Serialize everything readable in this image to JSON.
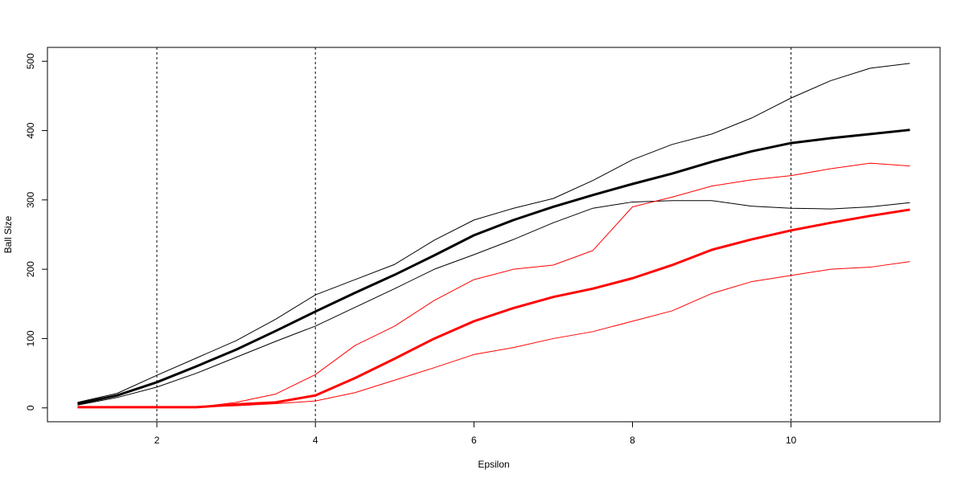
{
  "chart_data": {
    "type": "line",
    "title": "",
    "xlabel": "Epsilon",
    "ylabel": "Ball Size",
    "xlim": [
      0.62,
      11.88
    ],
    "ylim": [
      -20,
      520
    ],
    "x_ticks": [
      2,
      4,
      6,
      8,
      10
    ],
    "y_ticks": [
      0,
      100,
      200,
      300,
      400,
      500
    ],
    "vlines": [
      2,
      4,
      10
    ],
    "grid": false,
    "legend": "none",
    "x": [
      1,
      1.5,
      2,
      2.5,
      3,
      3.5,
      4,
      4.5,
      5,
      5.5,
      6,
      6.5,
      7,
      7.5,
      8,
      8.5,
      9,
      9.5,
      10,
      10.5,
      11,
      11.5
    ],
    "series": [
      {
        "color": "#000000",
        "width": 3,
        "values": [
          6,
          18,
          37,
          60,
          84,
          111,
          139,
          166,
          192,
          220,
          249,
          271,
          290,
          307,
          323,
          338,
          355,
          370,
          382,
          389,
          395,
          401
        ]
      },
      {
        "color": "#000000",
        "width": 1,
        "values": [
          8,
          21,
          47,
          72,
          97,
          128,
          163,
          185,
          207,
          242,
          271,
          288,
          302,
          328,
          358,
          380,
          395,
          418,
          447,
          472,
          490,
          497
        ]
      },
      {
        "color": "#000000",
        "width": 1,
        "values": [
          4,
          15,
          30,
          50,
          73,
          96,
          118,
          145,
          172,
          200,
          221,
          243,
          267,
          288,
          297,
          299,
          299,
          291,
          288,
          287,
          290,
          296
        ]
      },
      {
        "color": "#ff0000",
        "width": 3,
        "values": [
          1,
          1,
          1,
          1,
          5,
          8,
          18,
          43,
          71,
          100,
          125,
          144,
          160,
          172,
          187,
          206,
          228,
          243,
          256,
          267,
          277,
          286
        ]
      },
      {
        "color": "#ff0000",
        "width": 1,
        "values": [
          1,
          1,
          1,
          1,
          8,
          20,
          48,
          90,
          118,
          155,
          185,
          200,
          206,
          227,
          290,
          304,
          320,
          329,
          335,
          345,
          353,
          349
        ]
      },
      {
        "color": "#ff0000",
        "width": 1,
        "values": [
          1,
          1,
          1,
          1,
          3,
          6,
          10,
          22,
          40,
          58,
          77,
          87,
          100,
          110,
          125,
          140,
          165,
          182,
          191,
          200,
          203,
          211
        ]
      }
    ]
  }
}
